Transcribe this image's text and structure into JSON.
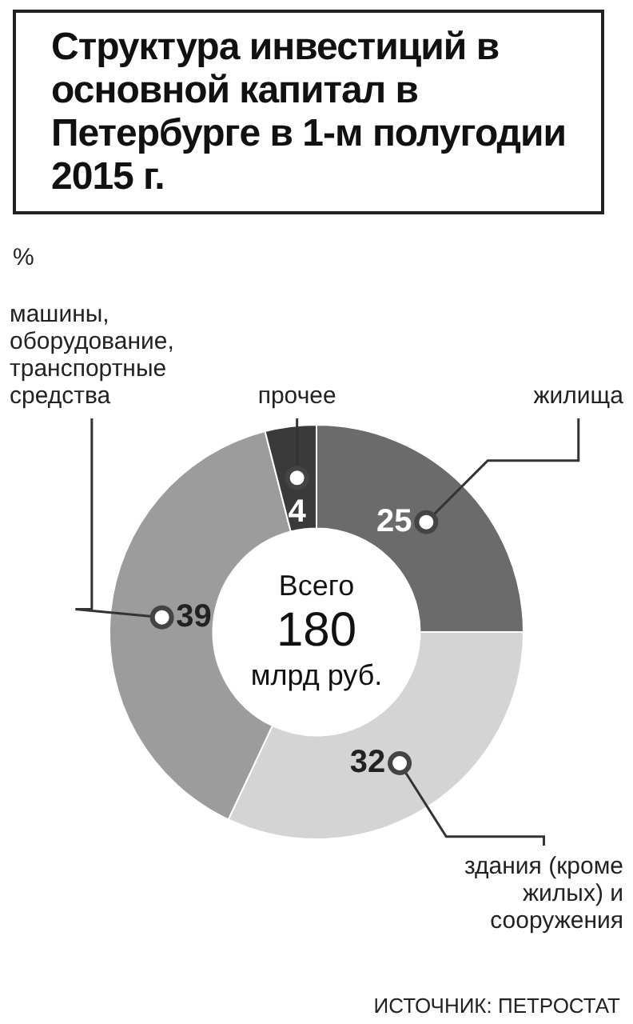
{
  "chart_data": {
    "type": "donut",
    "title": "Структура инвестиций в основной капитал в Петербурге в 1-м полугодии 2015 г.",
    "categories": [
      "жилища",
      "здания (кроме жилых) и сооружения",
      "машины, оборудование, транспортные средства",
      "прочее"
    ],
    "values": [
      25,
      32,
      39,
      4
    ],
    "colors": [
      "#6b6b6b",
      "#d4d4d4",
      "#9c9c9c",
      "#3a3a3a"
    ],
    "data_labels": true,
    "legend": false,
    "annotations": [
      "%",
      "Всего\n180\nмлрд руб.",
      "ИСТОЧНИК: ПЕТРОСТАТ"
    ]
  }
}
